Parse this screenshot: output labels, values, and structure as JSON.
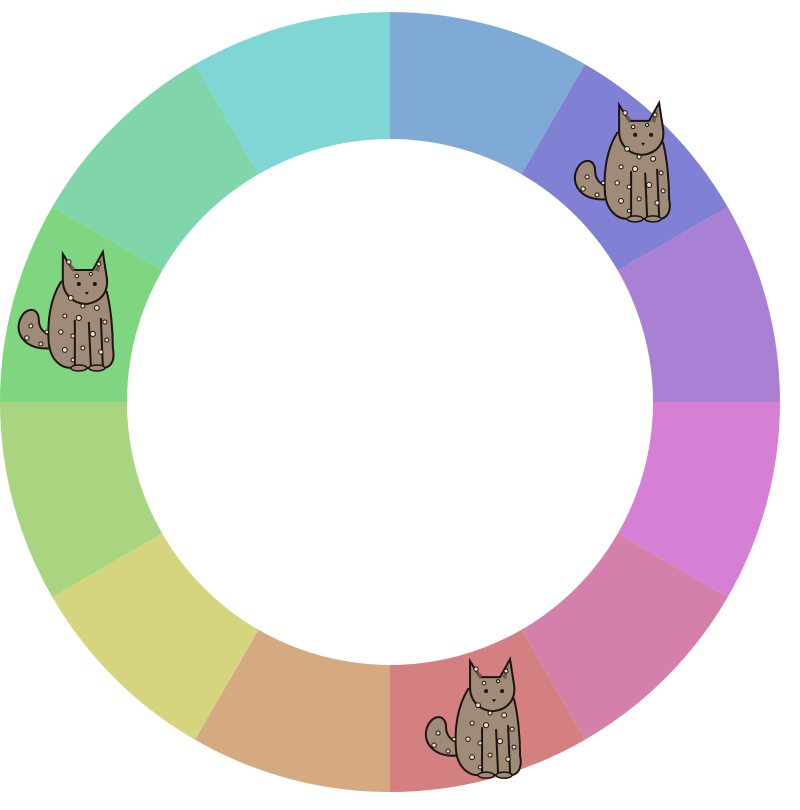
{
  "wheel": {
    "segments": [
      {
        "id": 1,
        "color": "#7faad5"
      },
      {
        "id": 2,
        "color": "#8080d5"
      },
      {
        "id": 3,
        "color": "#aa80d5"
      },
      {
        "id": 4,
        "color": "#d580d5"
      },
      {
        "id": 5,
        "color": "#d580aa"
      },
      {
        "id": 6,
        "color": "#d58080"
      },
      {
        "id": 7,
        "color": "#d5aa80"
      },
      {
        "id": 8,
        "color": "#d5d580"
      },
      {
        "id": 9,
        "color": "#aad580"
      },
      {
        "id": 10,
        "color": "#80d580"
      },
      {
        "id": 11,
        "color": "#80d5aa"
      },
      {
        "id": 12,
        "color": "#80d5d5"
      }
    ]
  },
  "pieces": [
    {
      "name": "cat-token",
      "icon": "spotted-cat-icon",
      "segment": 2
    },
    {
      "name": "cat-token",
      "icon": "spotted-cat-icon",
      "segment": 10
    },
    {
      "name": "cat-token",
      "icon": "spotted-cat-icon",
      "segment": 6
    }
  ],
  "colors": {
    "cat_body": "#a08a78",
    "cat_outline": "#1c1410",
    "cat_spot": "#e6dccf",
    "background": "#ffffff"
  }
}
